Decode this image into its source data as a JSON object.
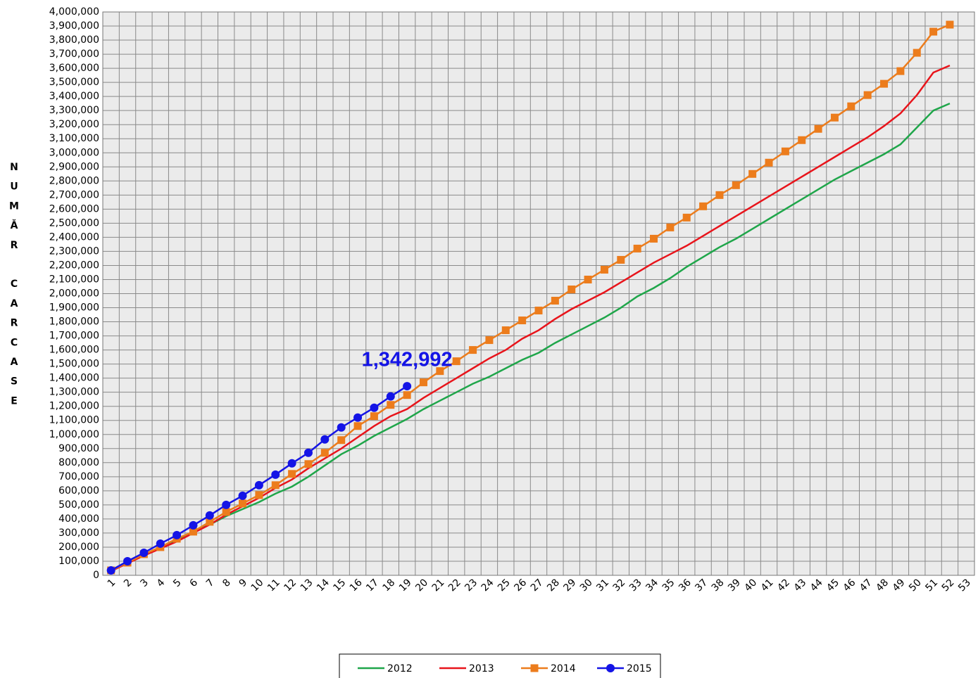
{
  "chart_data": {
    "type": "line",
    "y_label": "NUMĂR CARCASE",
    "categories": [
      1,
      2,
      3,
      4,
      5,
      6,
      7,
      8,
      9,
      10,
      11,
      12,
      13,
      14,
      15,
      16,
      17,
      18,
      19,
      20,
      21,
      22,
      23,
      24,
      25,
      26,
      27,
      28,
      29,
      30,
      31,
      32,
      33,
      34,
      35,
      36,
      37,
      38,
      39,
      40,
      41,
      42,
      43,
      44,
      45,
      46,
      47,
      48,
      49,
      50,
      51,
      52,
      53
    ],
    "series": [
      {
        "name": "2012",
        "color": "#1fa64a",
        "marker": "none",
        "values": [
          30000,
          90000,
          140000,
          200000,
          250000,
          310000,
          360000,
          420000,
          470000,
          520000,
          580000,
          630000,
          700000,
          780000,
          860000,
          920000,
          990000,
          1050000,
          1110000,
          1180000,
          1240000,
          1300000,
          1360000,
          1410000,
          1470000,
          1530000,
          1580000,
          1650000,
          1710000,
          1770000,
          1830000,
          1900000,
          1980000,
          2040000,
          2110000,
          2190000,
          2260000,
          2330000,
          2390000,
          2460000,
          2530000,
          2600000,
          2670000,
          2740000,
          2810000,
          2870000,
          2930000,
          2990000,
          3060000,
          3180000,
          3300000,
          3350000,
          null
        ]
      },
      {
        "name": "2013",
        "color": "#e8141b",
        "marker": "none",
        "values": [
          30000,
          85000,
          140000,
          190000,
          240000,
          300000,
          360000,
          430000,
          490000,
          550000,
          620000,
          680000,
          760000,
          830000,
          900000,
          980000,
          1060000,
          1130000,
          1180000,
          1260000,
          1330000,
          1400000,
          1470000,
          1540000,
          1600000,
          1680000,
          1740000,
          1820000,
          1890000,
          1950000,
          2010000,
          2080000,
          2150000,
          2220000,
          2280000,
          2340000,
          2410000,
          2480000,
          2550000,
          2620000,
          2690000,
          2760000,
          2830000,
          2900000,
          2970000,
          3040000,
          3110000,
          3190000,
          3280000,
          3410000,
          3570000,
          3620000,
          null
        ]
      },
      {
        "name": "2014",
        "color": "#ec7c1c",
        "marker": "square",
        "values": [
          35000,
          90000,
          150000,
          200000,
          260000,
          310000,
          380000,
          450000,
          510000,
          570000,
          640000,
          720000,
          790000,
          870000,
          960000,
          1060000,
          1130000,
          1210000,
          1280000,
          1370000,
          1450000,
          1520000,
          1600000,
          1670000,
          1740000,
          1810000,
          1880000,
          1950000,
          2030000,
          2100000,
          2170000,
          2240000,
          2320000,
          2390000,
          2470000,
          2540000,
          2620000,
          2700000,
          2770000,
          2850000,
          2930000,
          3010000,
          3090000,
          3170000,
          3250000,
          3330000,
          3410000,
          3490000,
          3580000,
          3710000,
          3860000,
          3910000,
          null
        ]
      },
      {
        "name": "2015",
        "color": "#1414e6",
        "marker": "circle",
        "values": [
          35000,
          100000,
          160000,
          225000,
          285000,
          355000,
          425000,
          500000,
          565000,
          640000,
          715000,
          795000,
          870000,
          965000,
          1050000,
          1120000,
          1190000,
          1270000,
          1342992,
          null,
          null,
          null,
          null,
          null,
          null,
          null,
          null,
          null,
          null,
          null,
          null,
          null,
          null,
          null,
          null,
          null,
          null,
          null,
          null,
          null,
          null,
          null,
          null,
          null,
          null,
          null,
          null,
          null,
          null,
          null,
          null,
          null,
          null
        ],
        "value_labels": [
          null,
          null,
          null,
          null,
          null,
          null,
          null,
          null,
          null,
          null,
          null,
          null,
          null,
          null,
          null,
          null,
          null,
          null,
          "1,342,992",
          null,
          null,
          null,
          null,
          null,
          null,
          null,
          null,
          null,
          null,
          null,
          null,
          null,
          null,
          null,
          null,
          null,
          null,
          null,
          null,
          null,
          null,
          null,
          null,
          null,
          null,
          null,
          null,
          null,
          null,
          null,
          null,
          null,
          null
        ]
      }
    ],
    "ylim": [
      0,
      4000000
    ],
    "yticks": [
      0,
      {
        "value": 100000,
        "label": "100,000"
      },
      {
        "value": 200000,
        "label": "200,000"
      },
      {
        "value": 300000,
        "label": "300,000"
      },
      {
        "value": 400000,
        "label": "400,000"
      },
      {
        "value": 500000,
        "label": "500,000"
      },
      {
        "value": 600000,
        "label": "600,000"
      },
      {
        "value": 700000,
        "label": "700,000"
      },
      {
        "value": 800000,
        "label": "800,000"
      },
      {
        "value": 900000,
        "label": "900,000"
      },
      {
        "value": 1000000,
        "label": "1,000,000"
      },
      {
        "value": 1100000,
        "label": "1,100,000"
      },
      {
        "value": 1200000,
        "label": "1,200,000"
      },
      {
        "value": 1300000,
        "label": "1,300,000"
      },
      {
        "value": 1400000,
        "label": "1,400,000"
      },
      {
        "value": 1500000,
        "label": "1,500,000"
      },
      {
        "value": 1600000,
        "label": "1,600,000"
      },
      {
        "value": 1700000,
        "label": "1,700,000"
      },
      {
        "value": 1800000,
        "label": "1,800,000"
      },
      {
        "value": 1900000,
        "label": "1,900,000"
      },
      {
        "value": 2000000,
        "label": "2,000,000"
      },
      {
        "value": 2100000,
        "label": "2,100,000"
      },
      {
        "value": 2200000,
        "label": "2,200,000"
      },
      {
        "value": 2300000,
        "label": "2,300,000"
      },
      {
        "value": 2400000,
        "label": "2,400,000"
      },
      {
        "value": 2500000,
        "label": "2,500,000"
      },
      {
        "value": 2600000,
        "label": "2,600,000"
      },
      {
        "value": 2700000,
        "label": "2,700,000"
      },
      {
        "value": 2800000,
        "label": "2,800,000"
      },
      {
        "value": 2900000,
        "label": "2,900,000"
      },
      {
        "value": 3000000,
        "label": "3,000,000"
      },
      {
        "value": 3100000,
        "label": "3,100,000"
      },
      {
        "value": 3200000,
        "label": "3,200,000"
      },
      {
        "value": 3300000,
        "label": "3,300,000"
      },
      {
        "value": 3400000,
        "label": "3,400,000"
      },
      {
        "value": 3500000,
        "label": "3,500,000"
      },
      {
        "value": 3600000,
        "label": "3,600,000"
      },
      {
        "value": 3700000,
        "label": "3,700,000"
      },
      {
        "value": 3800000,
        "label": "3,800,000"
      },
      {
        "value": 3900000,
        "label": "3,900,000"
      },
      {
        "value": 4000000,
        "label": "4,000,000"
      }
    ],
    "grid": true,
    "legend": "bottom"
  }
}
